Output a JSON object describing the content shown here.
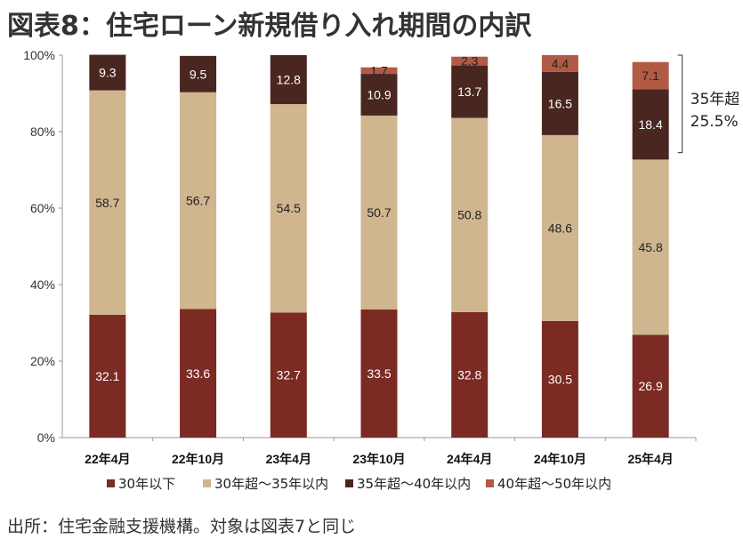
{
  "title": "図表8：住宅ローン新規借り入れ期間の内訳",
  "source": "出所：住宅金融支援機構。対象は図表7と同じ",
  "colors": {
    "s30below": "#7b2a24",
    "s30to35": "#cfb68e",
    "s35to40": "#4a2621",
    "s40to50": "#b25a44",
    "axis": "#999999"
  },
  "annotation": {
    "line1": "35年超",
    "line2": "25.5%"
  },
  "chart_data": {
    "type": "bar",
    "stacked": true,
    "categories": [
      "22年4月",
      "22年10月",
      "23年4月",
      "23年10月",
      "24年4月",
      "24年10月",
      "25年4月"
    ],
    "series": [
      {
        "name": "30年以下",
        "values": [
          32.1,
          33.6,
          32.7,
          33.5,
          32.8,
          30.5,
          26.9
        ]
      },
      {
        "name": "30年超～35年以内",
        "values": [
          58.7,
          56.7,
          54.5,
          50.7,
          50.8,
          48.6,
          45.8
        ]
      },
      {
        "name": "35年超～40年以内",
        "values": [
          9.3,
          9.5,
          12.8,
          10.9,
          13.7,
          16.5,
          18.4
        ]
      },
      {
        "name": "40年超～50年以内",
        "values": [
          null,
          null,
          null,
          1.7,
          2.3,
          4.4,
          7.1
        ]
      }
    ],
    "ylim": [
      0,
      100
    ],
    "yticks": [
      "0%",
      "20%",
      "40%",
      "60%",
      "80%",
      "100%"
    ],
    "legend_position": "bottom",
    "grid": false
  }
}
